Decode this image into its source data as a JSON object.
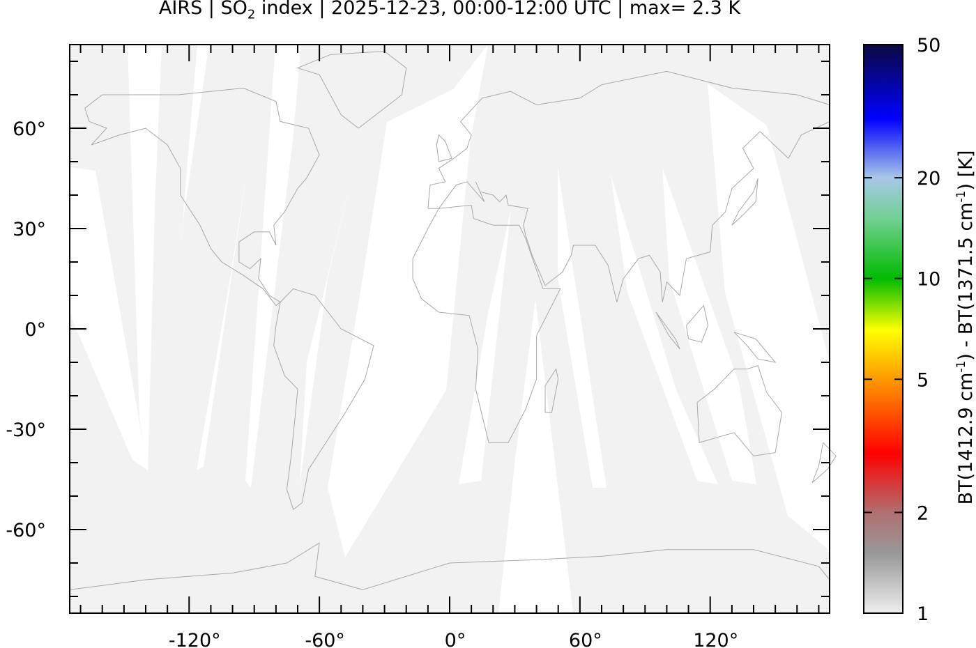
{
  "title": {
    "prefix": "AIRS | SO",
    "sub": "2",
    "suffix": " index | 2025-12-23, 00:00-12:00 UTC | max= 2.3 K"
  },
  "map": {
    "lon_range": [
      -175,
      175
    ],
    "lat_range": [
      -85,
      85
    ],
    "x_ticks": [
      {
        "v": -120,
        "label": "-120°"
      },
      {
        "v": -60,
        "label": "-60°"
      },
      {
        "v": 0,
        "label": "0°"
      },
      {
        "v": 60,
        "label": "60°"
      },
      {
        "v": 120,
        "label": "120°"
      }
    ],
    "y_ticks": [
      {
        "v": 60,
        "label": "60°"
      },
      {
        "v": 30,
        "label": "30°"
      },
      {
        "v": 0,
        "label": "0°"
      },
      {
        "v": -30,
        "label": "-30°"
      },
      {
        "v": -60,
        "label": "-60°"
      }
    ],
    "minor_tick_step_deg": 10,
    "colors": {
      "swath": "#f2f2f2",
      "gap": "#ffffff",
      "coast": "#a8a8a8"
    }
  },
  "colorbar": {
    "scale": "log",
    "range": [
      1,
      50
    ],
    "ticks": [
      {
        "v": 1,
        "label": "1"
      },
      {
        "v": 2,
        "label": "2"
      },
      {
        "v": 5,
        "label": "5"
      },
      {
        "v": 10,
        "label": "10"
      },
      {
        "v": 20,
        "label": "20"
      },
      {
        "v": 50,
        "label": "50"
      }
    ],
    "label": {
      "a": "BT(1412.9 cm",
      "b": "-1",
      "c": ") - BT(1371.5 cm",
      "d": "-1",
      "e": ") [K]"
    },
    "stops": [
      {
        "v": 1,
        "c": "#eeeeee"
      },
      {
        "v": 1.5,
        "c": "#999999"
      },
      {
        "v": 2,
        "c": "#b07070"
      },
      {
        "v": 3,
        "c": "#ff0000"
      },
      {
        "v": 5,
        "c": "#ff9900"
      },
      {
        "v": 7,
        "c": "#ffff00"
      },
      {
        "v": 10,
        "c": "#00bb00"
      },
      {
        "v": 15,
        "c": "#70d090"
      },
      {
        "v": 20,
        "c": "#a8c8e8"
      },
      {
        "v": 30,
        "c": "#0000ff"
      },
      {
        "v": 50,
        "c": "#0a0a40"
      }
    ]
  }
}
